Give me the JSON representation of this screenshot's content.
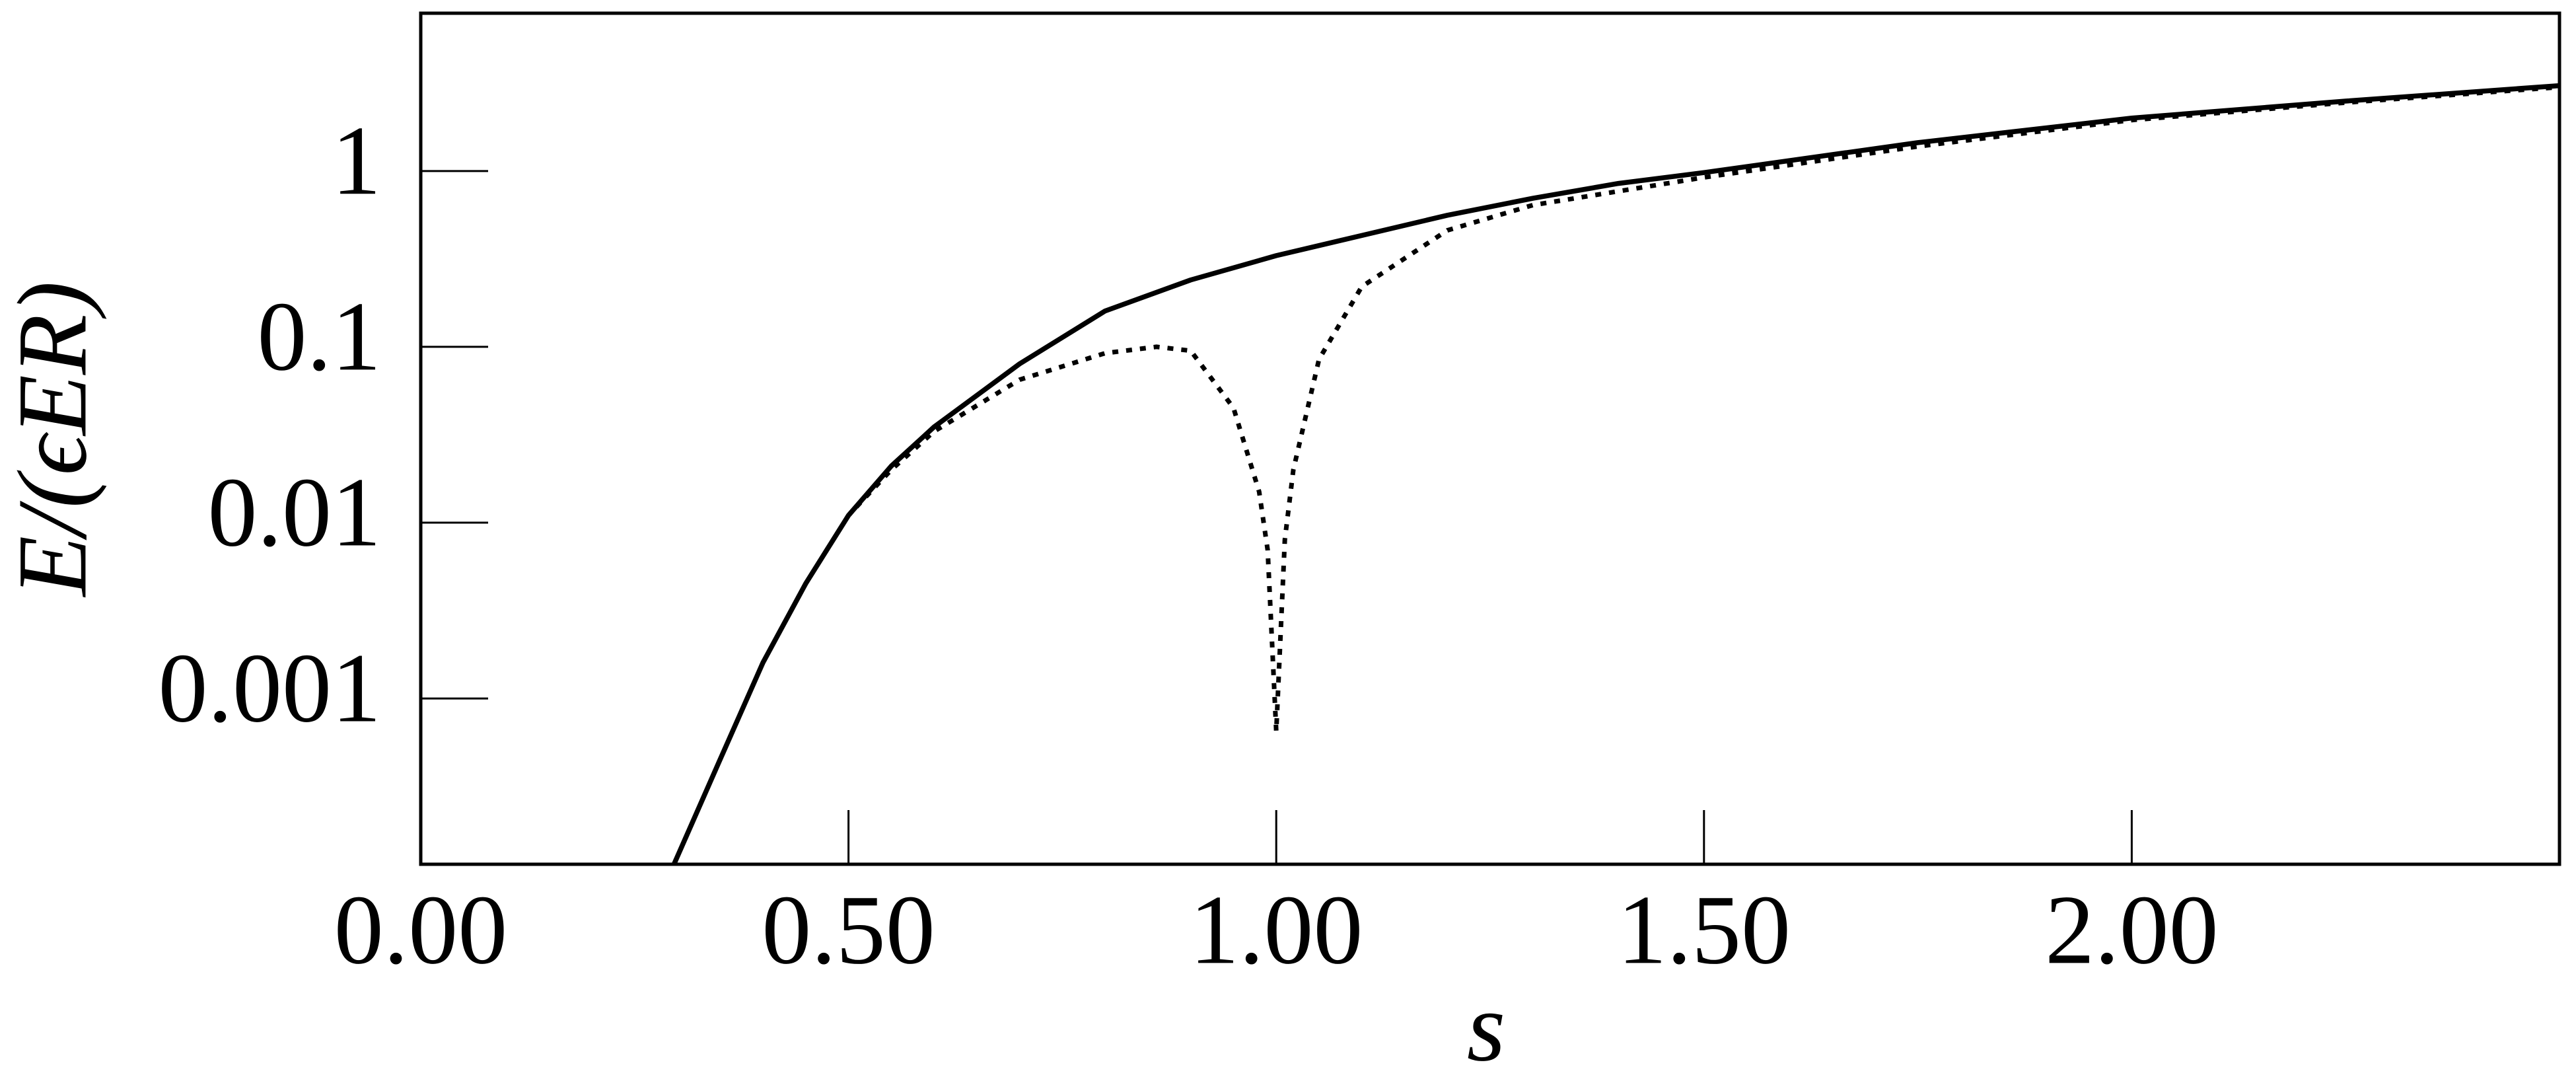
{
  "chart_data": {
    "type": "line",
    "x_label": "s",
    "y_label": "E/(ϵER)",
    "xlim": [
      0,
      2.5
    ],
    "ylim": [
      0.000114,
      7.9
    ],
    "yscale": "log",
    "xticks": [
      {
        "value": 0,
        "label": "0.00"
      },
      {
        "value": 0.5,
        "label": "0.50"
      },
      {
        "value": 1,
        "label": "1.00"
      },
      {
        "value": 1.5,
        "label": "1.50"
      },
      {
        "value": 2,
        "label": "2.00"
      }
    ],
    "yticks": [
      0.001,
      0.01,
      0.1,
      1
    ],
    "series": [
      {
        "style": "solid",
        "color": "#000000",
        "x": [
          0.296,
          0.35,
          0.4,
          0.45,
          0.5,
          0.55,
          0.6,
          0.7,
          0.8,
          0.9,
          1.0,
          1.1,
          1.2,
          1.3,
          1.4,
          1.5,
          1.75,
          2.0,
          2.25,
          2.5
        ],
        "values": [
          0.000114,
          0.00045,
          0.0016,
          0.0045,
          0.011,
          0.021,
          0.035,
          0.08,
          0.16,
          0.24,
          0.33,
          0.43,
          0.56,
          0.7,
          0.85,
          0.98,
          1.45,
          2.0,
          2.5,
          3.06
        ]
      },
      {
        "style": "dotted",
        "color": "#000000",
        "x": [
          0.296,
          0.35,
          0.4,
          0.45,
          0.5,
          0.55,
          0.6,
          0.7,
          0.8,
          0.86,
          0.9,
          0.95,
          0.98,
          0.99,
          1.0,
          1.01,
          1.02,
          1.05,
          1.1,
          1.2,
          1.3,
          1.5,
          1.75,
          2.0,
          2.25,
          2.5
        ],
        "values": [
          0.000114,
          0.00045,
          0.0016,
          0.0045,
          0.011,
          0.02,
          0.033,
          0.065,
          0.092,
          0.1,
          0.095,
          0.045,
          0.015,
          0.007,
          0.00065,
          0.008,
          0.02,
          0.085,
          0.22,
          0.46,
          0.64,
          0.92,
          1.38,
          1.95,
          2.45,
          3.0
        ]
      }
    ]
  }
}
